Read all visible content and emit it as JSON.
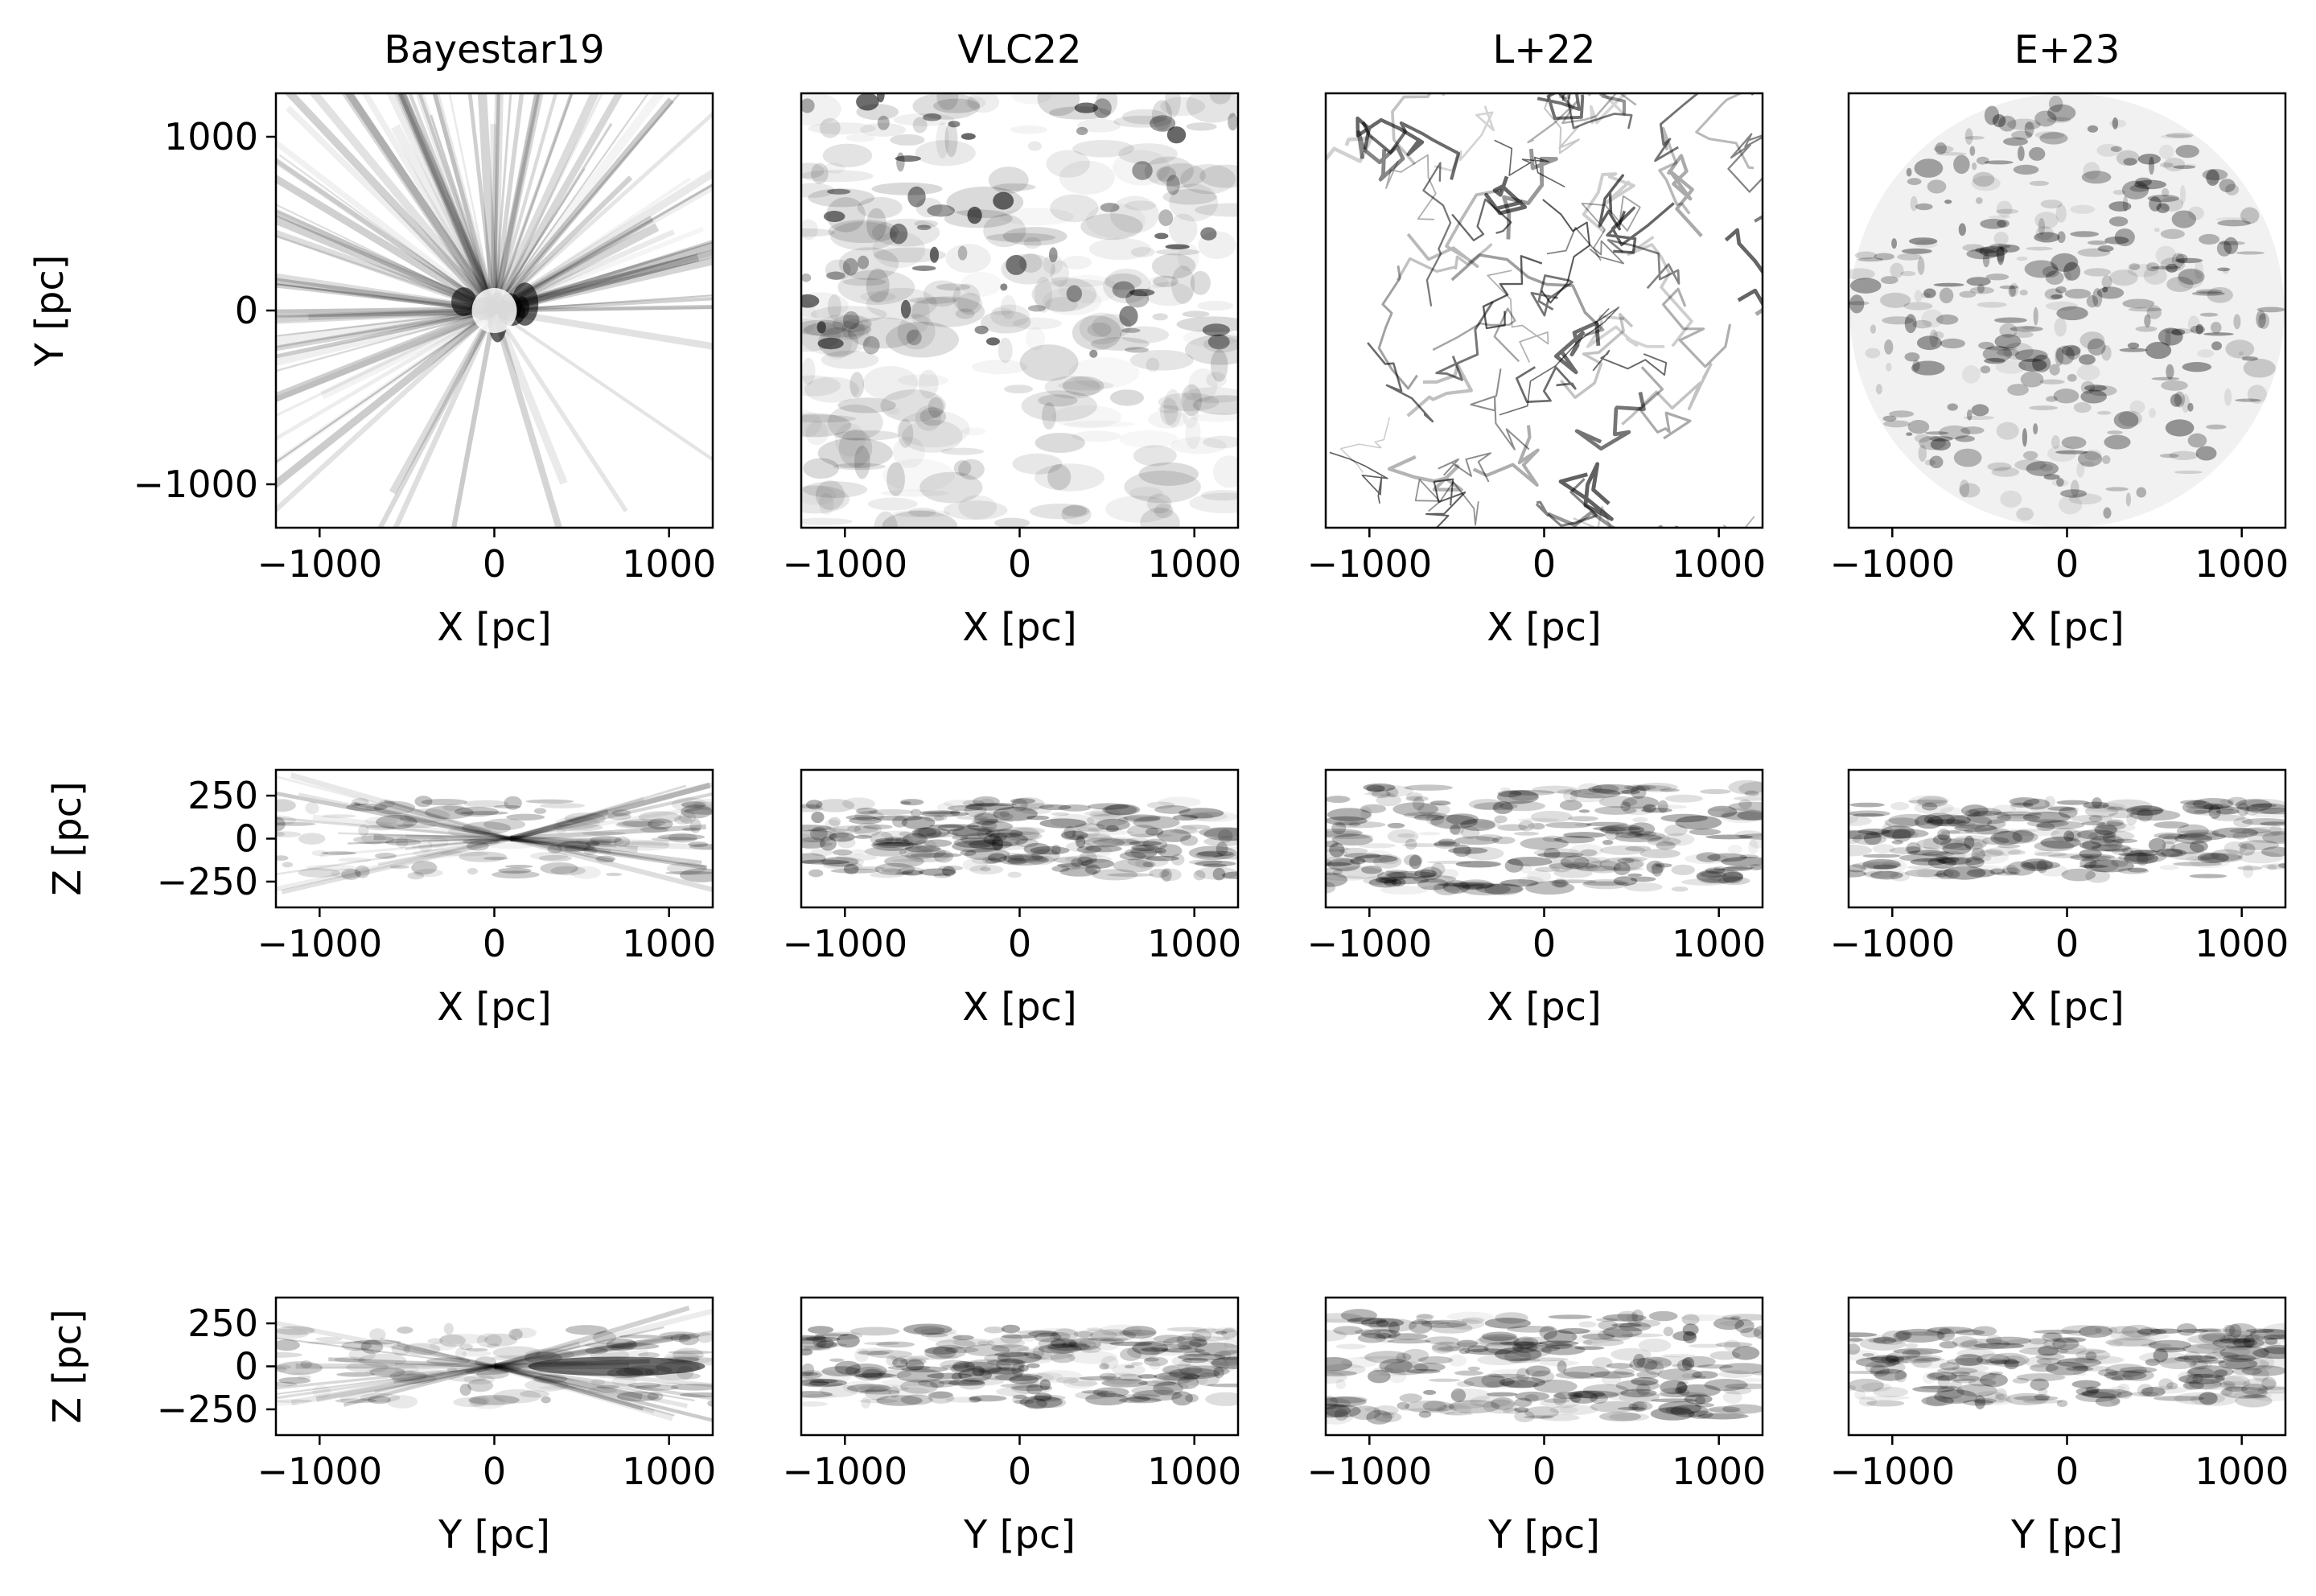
{
  "figure": {
    "panel_titles": [
      "Bayestar19",
      "VLC22",
      "L+22",
      "E+23"
    ]
  },
  "chart_data": [
    {
      "type": "heatmap",
      "row": "face-on",
      "xlabel": "X [pc]",
      "ylabel": "Y [pc]",
      "xlim": [
        -1250,
        1250
      ],
      "ylim": [
        -1250,
        1250
      ],
      "xticks": [
        -1000,
        0,
        1000
      ],
      "yticks": [
        -1000,
        0,
        1000
      ],
      "xtick_labels": [
        "−1000",
        "0",
        "1000"
      ],
      "ytick_labels": [
        "−1000",
        "0",
        "1000"
      ],
      "colormap": "Greys",
      "panels": [
        "Bayestar19",
        "VLC22",
        "L+22",
        "E+23"
      ]
    },
    {
      "type": "heatmap",
      "row": "edge-on-xz",
      "xlabel": "X [pc]",
      "ylabel": "Z [pc]",
      "xlim": [
        -1250,
        1250
      ],
      "ylim": [
        -400,
        400
      ],
      "xticks": [
        -1000,
        0,
        1000
      ],
      "yticks": [
        -250,
        0,
        250
      ],
      "xtick_labels": [
        "−1000",
        "0",
        "1000"
      ],
      "ytick_labels": [
        "−250",
        "0",
        "250"
      ],
      "colormap": "Greys",
      "panels": [
        "Bayestar19",
        "VLC22",
        "L+22",
        "E+23"
      ]
    },
    {
      "type": "heatmap",
      "row": "edge-on-yz",
      "xlabel": "Y [pc]",
      "ylabel": "Z [pc]",
      "xlim": [
        -1250,
        1250
      ],
      "ylim": [
        -400,
        400
      ],
      "xticks": [
        -1000,
        0,
        1000
      ],
      "yticks": [
        -250,
        0,
        250
      ],
      "xtick_labels": [
        "−1000",
        "0",
        "1000"
      ],
      "ytick_labels": [
        "−250",
        "0",
        "250"
      ],
      "colormap": "Greys",
      "panels": [
        "Bayestar19",
        "VLC22",
        "L+22",
        "E+23"
      ]
    }
  ]
}
